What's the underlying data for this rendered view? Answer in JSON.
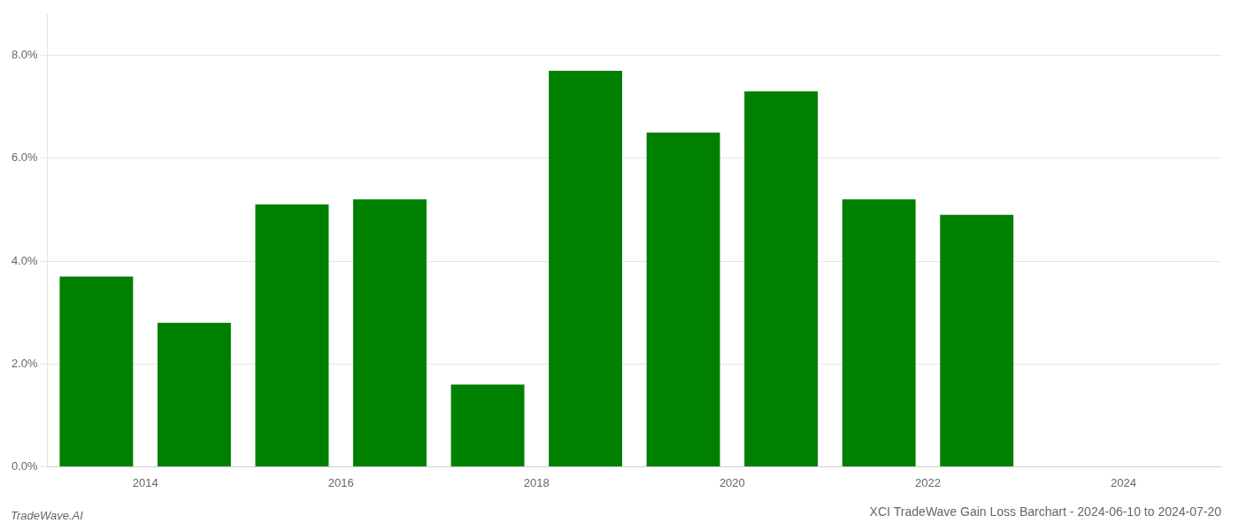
{
  "chart_data": {
    "type": "bar",
    "title": "XCI TradeWave Gain Loss Barchart - 2024-06-10 to 2024-07-20",
    "annotations": [
      "TradeWave.AI"
    ],
    "x": [
      2013.5,
      2014.5,
      2015.5,
      2016.5,
      2017.5,
      2018.5,
      2019.5,
      2020.5,
      2021.5,
      2022.5
    ],
    "values": [
      0.037,
      0.028,
      0.051,
      0.052,
      0.016,
      0.077,
      0.065,
      0.073,
      0.052,
      0.049
    ],
    "color": "#008000",
    "xlim": [
      2013.0,
      2025.0
    ],
    "xticks": [
      2014,
      2016,
      2018,
      2020,
      2022,
      2024
    ],
    "ylim": [
      0,
      0.088
    ],
    "yticks": [
      {
        "value": 0.0,
        "label": "0.0%"
      },
      {
        "value": 0.02,
        "label": "2.0%"
      },
      {
        "value": 0.04,
        "label": "4.0%"
      },
      {
        "value": 0.06,
        "label": "6.0%"
      },
      {
        "value": 0.08,
        "label": "8.0%"
      }
    ],
    "grid": true
  }
}
